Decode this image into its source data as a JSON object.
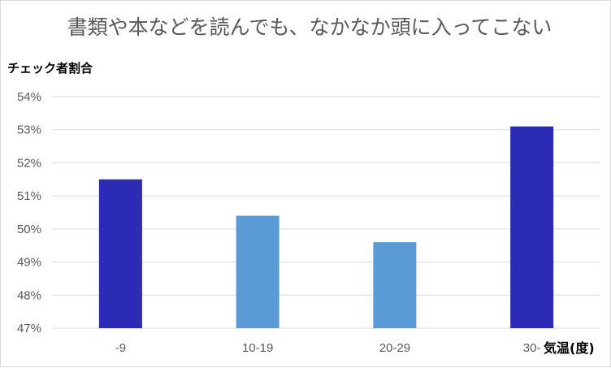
{
  "chart_data": {
    "type": "bar",
    "title": "書類や本などを読んでも、なかなか頭に入ってこない",
    "ylabel": "チェック者割合",
    "xlabel": "気温(度)",
    "categories": [
      "-9",
      "10-19",
      "20-29",
      "30-"
    ],
    "values": [
      51.5,
      50.4,
      49.6,
      53.1
    ],
    "bar_colors": [
      "#2b2bb5",
      "#5b9bd5",
      "#5b9bd5",
      "#2b2bb5"
    ],
    "ylim": [
      47,
      54
    ],
    "yticks": [
      "47%",
      "48%",
      "49%",
      "50%",
      "51%",
      "52%",
      "53%",
      "54%"
    ],
    "grid": true
  }
}
